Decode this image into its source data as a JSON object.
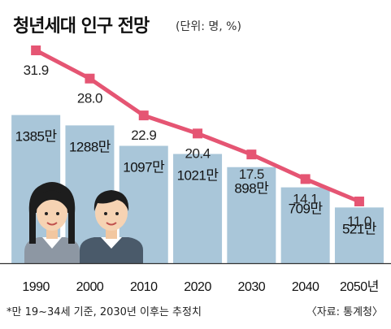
{
  "title": "청년세대 인구 전망",
  "unit": "(단위: 명, %)",
  "footnote": "*만 19~34세 기준, 2030년 이후는 추정치",
  "source": "〈자료: 통계청〉",
  "chart_data": {
    "type": "bar",
    "categories": [
      "1990",
      "2000",
      "2010",
      "2020",
      "2030",
      "2040",
      "2050년"
    ],
    "series": [
      {
        "type": "bar",
        "values": [
          1385,
          1288,
          1097,
          1021,
          898,
          709,
          521
        ],
        "labels": [
          "1385만",
          "1288만",
          "1097만",
          "1021만",
          "898만",
          "709만",
          "521만"
        ],
        "color": "#a9c6d9"
      },
      {
        "type": "line",
        "values": [
          31.9,
          28.0,
          22.9,
          20.4,
          17.5,
          14.1,
          11.0
        ],
        "labels": [
          "31.9",
          "28.0",
          "22.9",
          "20.4",
          "17.5",
          "14.1",
          "11.0"
        ],
        "color": "#e55573"
      }
    ],
    "title": "청년세대 인구 전망",
    "xlabel": "",
    "ylabel": "",
    "grid": false,
    "legend": "none"
  }
}
